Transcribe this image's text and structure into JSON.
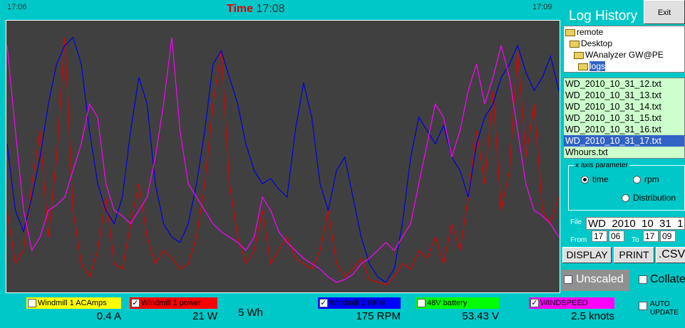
{
  "time_axis": {
    "label": "Time",
    "start": "17:06",
    "mid": "17:08",
    "end": "17:09"
  },
  "chart_data": {
    "type": "line",
    "ylim": [
      0,
      100
    ],
    "series": [
      {
        "color": "#e00000",
        "values": [
          30,
          10,
          15,
          40,
          60,
          20,
          50,
          95,
          30,
          10,
          5,
          15,
          35,
          10,
          8,
          25,
          40,
          20,
          10,
          15,
          12,
          8,
          10,
          20,
          40,
          70,
          90,
          40,
          20,
          10,
          15,
          30,
          10,
          15,
          20,
          12,
          10,
          8,
          15,
          30,
          10,
          5,
          8,
          12,
          4,
          3,
          2,
          5,
          10,
          8,
          15,
          12,
          20,
          10,
          25,
          15,
          35,
          60,
          40,
          75,
          30,
          45,
          90,
          50,
          70,
          30,
          25,
          35
        ]
      },
      {
        "color": "#0000e0",
        "values": [
          55,
          30,
          22,
          35,
          50,
          70,
          85,
          92,
          95,
          85,
          60,
          40,
          30,
          25,
          35,
          60,
          80,
          70,
          40,
          25,
          20,
          18,
          25,
          40,
          60,
          85,
          90,
          80,
          70,
          55,
          45,
          40,
          42,
          38,
          35,
          60,
          78,
          65,
          40,
          30,
          45,
          50,
          35,
          20,
          10,
          5,
          3,
          8,
          25,
          50,
          65,
          60,
          55,
          62,
          50,
          45,
          35,
          55,
          65,
          70,
          80,
          85,
          92,
          82,
          75,
          80,
          88,
          75
        ]
      },
      {
        "color": "#ff00ff",
        "values": [
          92,
          60,
          30,
          15,
          20,
          30,
          32,
          35,
          45,
          55,
          70,
          65,
          40,
          30,
          28,
          25,
          30,
          35,
          50,
          70,
          95,
          60,
          40,
          35,
          30,
          25,
          22,
          20,
          18,
          15,
          20,
          35,
          30,
          22,
          18,
          15,
          12,
          10,
          8,
          5,
          3,
          4,
          6,
          10,
          12,
          15,
          18,
          15,
          20,
          25,
          40,
          55,
          70,
          65,
          50,
          60,
          75,
          85,
          70,
          80,
          92,
          80,
          60,
          40,
          30,
          28,
          25,
          20
        ]
      }
    ]
  },
  "legend": [
    {
      "label": "Windmill 1 ACAmps",
      "color": "#ffff00",
      "text_color": "#000000",
      "checked": false,
      "reading": "0.4 A"
    },
    {
      "label": "Windmill 1 power",
      "color": "#ff0000",
      "text_color": "#000000",
      "checked": true,
      "reading": "21 W"
    },
    {
      "label": "Windmill 1 RPM",
      "color": "#0000ff",
      "text_color": "#000000",
      "checked": true,
      "reading": "175 RPM"
    },
    {
      "label": "48V battery",
      "color": "#00ff00",
      "text_color": "#000000",
      "checked": false,
      "reading": "53.43 V"
    },
    {
      "label": "WINDSPEED",
      "color": "#ff00ff",
      "text_color": "#000000",
      "checked": true,
      "reading": "2.5  knots"
    }
  ],
  "energy": "5 Wh",
  "panel": {
    "title": "Log History",
    "exit": "Exit",
    "folders": [
      "remote",
      "Desktop",
      "WAnalyzer GW@PE",
      "logs"
    ],
    "selected_folder": 3,
    "files": [
      "WD_2010_10_31_12.txt",
      "WD_2010_10_31_13.txt",
      "WD_2010_10_31_14.txt",
      "WD_2010_10_31_15.txt",
      "WD_2010_10_31_16.txt",
      "WD_2010_10_31_17.txt",
      "Whours.txt"
    ],
    "selected_file": 5,
    "x_axis_parameter": {
      "title": "x axis parameter",
      "options": [
        "time",
        "rpm",
        "Distribution"
      ],
      "selected": 0
    },
    "file_label": "File",
    "file_name": "WD  2010  10  31  1",
    "from_label": "From",
    "from": [
      "17",
      "06"
    ],
    "to_label": "To",
    "to": [
      "17",
      "09"
    ],
    "buttons": [
      "DISPLAY",
      "PRINT",
      ".CSV"
    ],
    "unscaled": {
      "label": "Unscaled",
      "checked": false
    },
    "collate": {
      "label": "Collate",
      "checked": false
    },
    "auto_update": {
      "label": "AUTO UPDATE",
      "checked": false
    }
  }
}
